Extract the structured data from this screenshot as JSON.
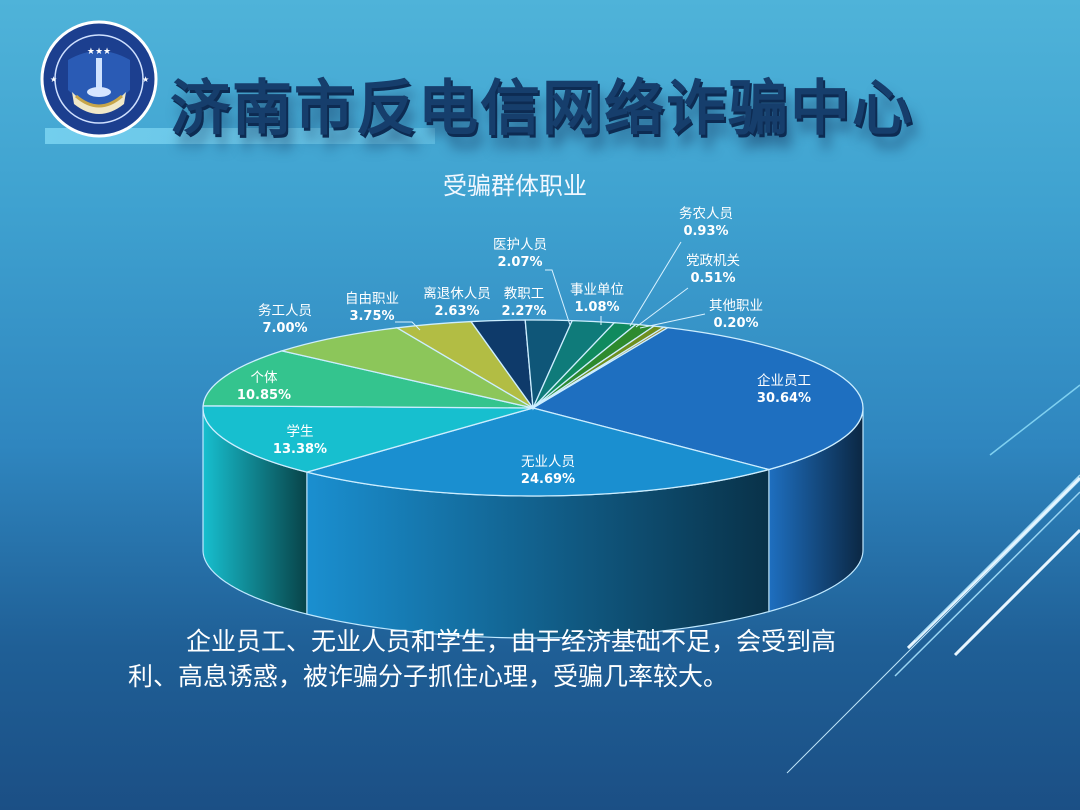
{
  "header": {
    "title": "济南市反电信网络诈骗中心",
    "logo": {
      "icon": "police-badge-icon",
      "ring_text_en": "Jinan Municipal Telecom & Internet Anti-Fraud Center"
    }
  },
  "chart_data": {
    "type": "pie",
    "style": "3d-pie",
    "title": "受骗群体职业",
    "unit": "%",
    "categories": [
      "企业员工",
      "无业人员",
      "学生",
      "个体",
      "务工人员",
      "自由职业",
      "离退休人员",
      "教职工",
      "医护人员",
      "事业单位",
      "务农人员",
      "党政机关",
      "其他职业"
    ],
    "values": [
      30.64,
      24.69,
      13.38,
      10.85,
      7.0,
      3.75,
      2.63,
      2.27,
      2.07,
      1.08,
      0.93,
      0.51,
      0.2
    ],
    "labels": [
      "30.64%",
      "24.69%",
      "13.38%",
      "10.85%",
      "7.00%",
      "3.75%",
      "2.63%",
      "2.27%",
      "2.07%",
      "1.08%",
      "0.93%",
      "0.51%",
      "0.20%"
    ],
    "colors": [
      "#1e6fc0",
      "#1a8fd0",
      "#17bfcf",
      "#34c48e",
      "#8cc65a",
      "#b2bd44",
      "#0e3a6a",
      "#0f5678",
      "#0f7b7a",
      "#108a5e",
      "#2e8a2e",
      "#6f8f1e",
      "#a08a2a"
    ],
    "legend": "none (callout labels)"
  },
  "body": {
    "paragraph": "企业员工、无业人员和学生，由于经济基础不足，会受到高利、高息诱惑，被诈骗分子抓住心理，受骗几率较大。"
  }
}
